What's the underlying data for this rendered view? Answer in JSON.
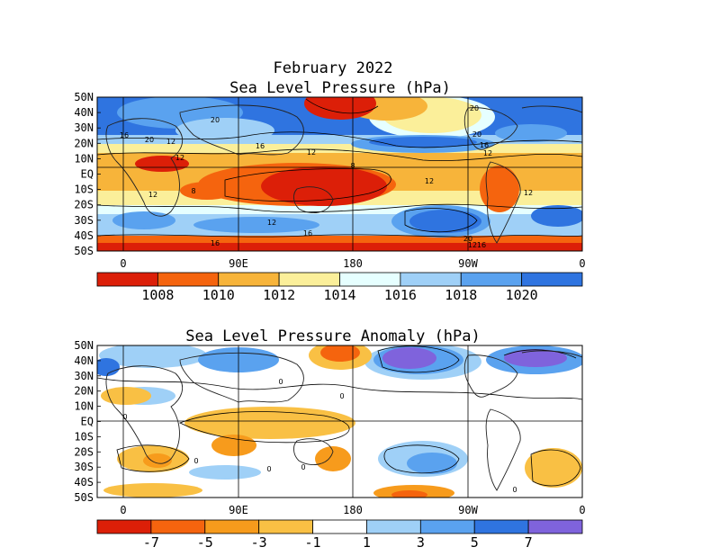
{
  "chart_data": [
    {
      "type": "heatmap",
      "title": "February 2022",
      "subtitle": "Sea Level Pressure (hPa)",
      "y_ticks": [
        "50N",
        "40N",
        "30N",
        "20N",
        "10N",
        "EQ",
        "10S",
        "20S",
        "30S",
        "40S",
        "50S"
      ],
      "x_ticks": [
        "0",
        "90E",
        "180",
        "90W",
        "0"
      ],
      "colorbar": {
        "labels": [
          "1008",
          "1010",
          "1012",
          "1014",
          "1016",
          "1018",
          "1020"
        ],
        "colors": [
          "#dc1f08",
          "#f5640e",
          "#f7b43a",
          "#fbef9a",
          "#e6ffff",
          "#9fd0f7",
          "#5aa2ef",
          "#2f74e0"
        ]
      },
      "contour_labels": [
        "20",
        "20",
        "16",
        "20",
        "12",
        "16",
        "12",
        "8",
        "12",
        "12",
        "12",
        "8",
        "12",
        "16",
        "16",
        "20",
        "20",
        "16",
        "12",
        "12",
        "12",
        "16"
      ]
    },
    {
      "type": "heatmap",
      "title": "Sea Level Pressure Anomaly (hPa)",
      "y_ticks": [
        "50N",
        "40N",
        "30N",
        "20N",
        "10N",
        "EQ",
        "10S",
        "20S",
        "30S",
        "40S",
        "50S"
      ],
      "x_ticks": [
        "0",
        "90E",
        "180",
        "90W",
        "0"
      ],
      "colorbar": {
        "labels": [
          "-7",
          "-5",
          "-3",
          "-1",
          "1",
          "3",
          "5",
          "7"
        ],
        "colors": [
          "#dc1f08",
          "#f5640e",
          "#f79b1c",
          "#f9c044",
          "#ffffff",
          "#9fd0f7",
          "#5aa2ef",
          "#2f74e0",
          "#7f63dc"
        ]
      },
      "contour_labels": [
        "0",
        "0",
        "0",
        "0",
        "0",
        "0",
        "0"
      ]
    }
  ]
}
